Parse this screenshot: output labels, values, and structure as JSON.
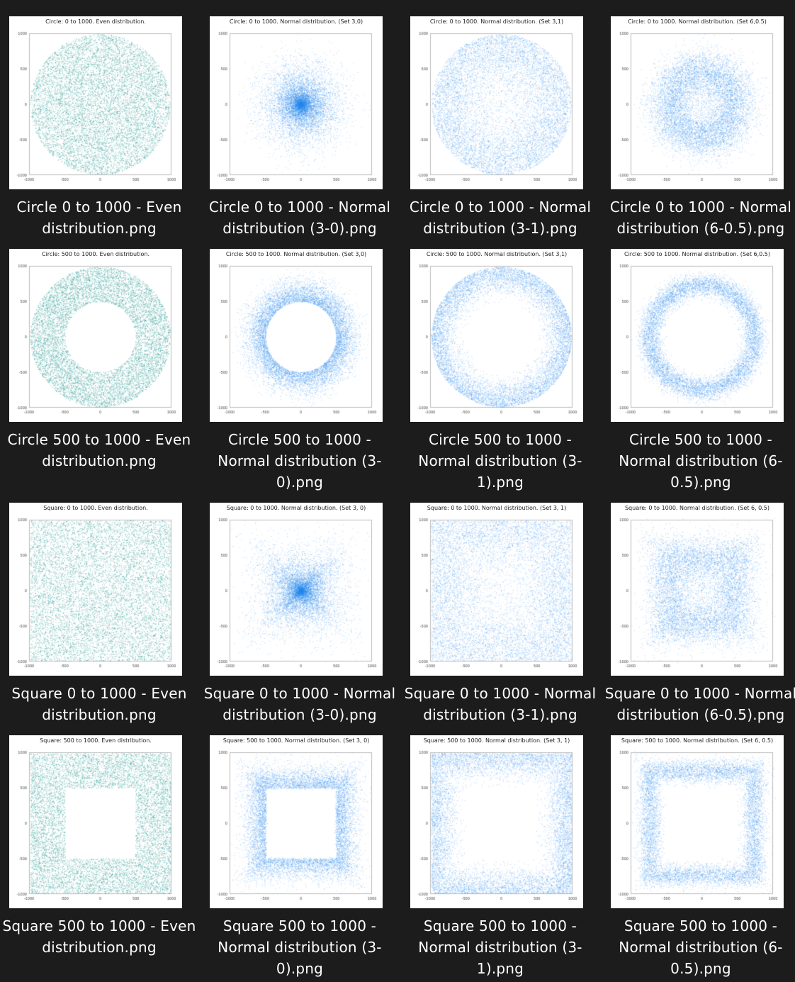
{
  "colors": {
    "background": "#1c1c1c",
    "thumb_background": "#ffffff",
    "even_points": "#2f9e99",
    "normal_points": "#2a8df0",
    "caption_text": "#ffffff"
  },
  "axis": {
    "ticks": [
      "-1000",
      "-500",
      "0",
      "500",
      "1000"
    ],
    "range": [
      -1000,
      1000
    ]
  },
  "files": [
    {
      "caption": "Circle 0 to 1000 - Even distribution.png",
      "plot_title": "Circle: 0 to 1000. Even distribution.",
      "shape": "circle",
      "inner": 0,
      "dist": "even"
    },
    {
      "caption": "Circle 0 to 1000 - Normal distribution (3-0).png",
      "plot_title": "Circle: 0 to 1000. Normal distribution. (Set 3,0)",
      "shape": "circle",
      "inner": 0,
      "dist": "normal-3-0"
    },
    {
      "caption": "Circle 0 to 1000 - Normal distribution (3-1).png",
      "plot_title": "Circle: 0 to 1000. Normal distribution. (Set 3,1)",
      "shape": "circle",
      "inner": 0,
      "dist": "normal-3-1"
    },
    {
      "caption": "Circle 0 to 1000 - Normal distribution (6-0.5).png",
      "plot_title": "Circle: 0 to 1000. Normal distribution. (Set 6,0.5)",
      "shape": "circle",
      "inner": 0,
      "dist": "normal-6-0.5"
    },
    {
      "caption": "Circle 500 to 1000 - Even distribution.png",
      "plot_title": "Circle: 500 to 1000. Even distribution.",
      "shape": "circle",
      "inner": 500,
      "dist": "even"
    },
    {
      "caption": "Circle 500 to 1000 - Normal distribution (3-0).png",
      "plot_title": "Circle: 500 to 1000. Normal distribution. (Set 3,0)",
      "shape": "circle",
      "inner": 500,
      "dist": "normal-3-0"
    },
    {
      "caption": "Circle 500 to 1000 - Normal distribution (3-1).png",
      "plot_title": "Circle: 500 to 1000. Normal distribution. (Set 3,1)",
      "shape": "circle",
      "inner": 500,
      "dist": "normal-3-1"
    },
    {
      "caption": "Circle 500 to 1000 - Normal distribution (6-0.5).png",
      "plot_title": "Circle: 500 to 1000. Normal distribution. (Set 6,0.5)",
      "shape": "circle",
      "inner": 500,
      "dist": "normal-6-0.5"
    },
    {
      "caption": "Square 0 to 1000 - Even distribution.png",
      "plot_title": "Square: 0 to 1000. Even distribution.",
      "shape": "square",
      "inner": 0,
      "dist": "even"
    },
    {
      "caption": "Square 0 to 1000 - Normal distribution (3-0).png",
      "plot_title": "Square: 0 to 1000. Normal distribution. (Set 3, 0)",
      "shape": "square",
      "inner": 0,
      "dist": "normal-3-0"
    },
    {
      "caption": "Square 0 to 1000 - Normal distribution (3-1).png",
      "plot_title": "Square: 0 to 1000. Normal distribution. (Set 3, 1)",
      "shape": "square",
      "inner": 0,
      "dist": "normal-3-1"
    },
    {
      "caption": "Square 0 to 1000 - Normal distribution (6-0.5).png",
      "plot_title": "Square: 0 to 1000. Normal distribution. (Set 6, 0.5)",
      "shape": "square",
      "inner": 0,
      "dist": "normal-6-0.5"
    },
    {
      "caption": "Square 500 to 1000 - Even distribution.png",
      "plot_title": "Square: 500 to 1000. Even distribution.",
      "shape": "square",
      "inner": 500,
      "dist": "even"
    },
    {
      "caption": "Square 500 to 1000 - Normal distribution (3-0).png",
      "plot_title": "Square: 500 to 1000. Normal distribution. (Set 3, 0)",
      "shape": "square",
      "inner": 500,
      "dist": "normal-3-0"
    },
    {
      "caption": "Square 500 to 1000 - Normal distribution (3-1).png",
      "plot_title": "Square: 500 to 1000. Normal distribution. (Set 3, 1)",
      "shape": "square",
      "inner": 500,
      "dist": "normal-3-1"
    },
    {
      "caption": "Square 500 to 1000 - Normal distribution (6-0.5).png",
      "plot_title": "Square: 500 to 1000. Normal distribution. (Set 6, 0.5)",
      "shape": "square",
      "inner": 500,
      "dist": "normal-6-0.5"
    }
  ]
}
